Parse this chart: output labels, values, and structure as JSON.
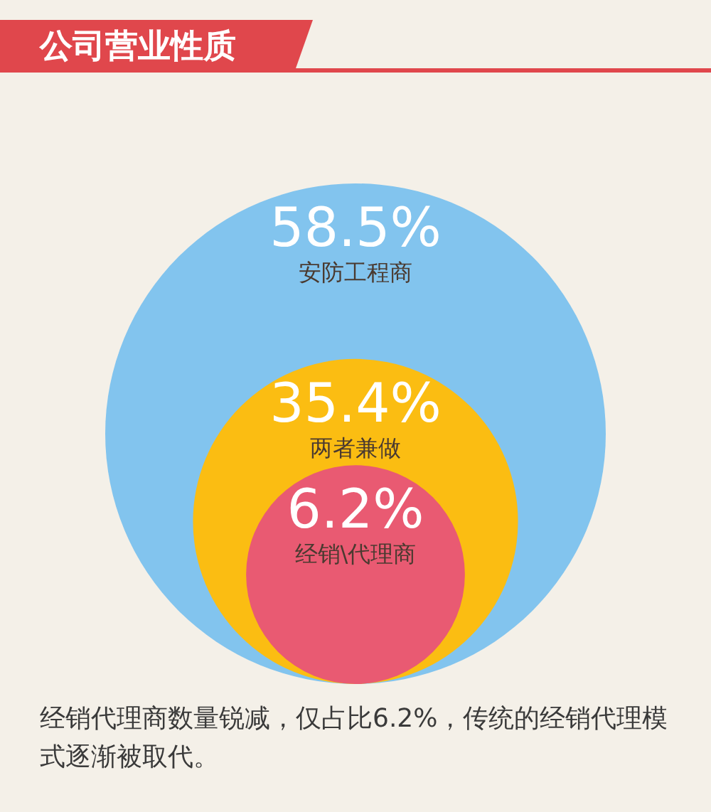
{
  "chart_data": {
    "type": "other",
    "title": "公司营业性质",
    "categories": [
      "安防工程商",
      "两者兼做",
      "经销\\代理商"
    ],
    "values": [
      58.5,
      35.4,
      6.2
    ],
    "value_labels": [
      "58.5%",
      "35.4%",
      "6.2%"
    ],
    "colors": [
      "#82c4ee",
      "#fbbd12",
      "#e95a72"
    ],
    "annotations": [
      "经销代理商数量锐减，仅占比6.2%，传统的经销代理模式逐渐被取代。"
    ]
  }
}
